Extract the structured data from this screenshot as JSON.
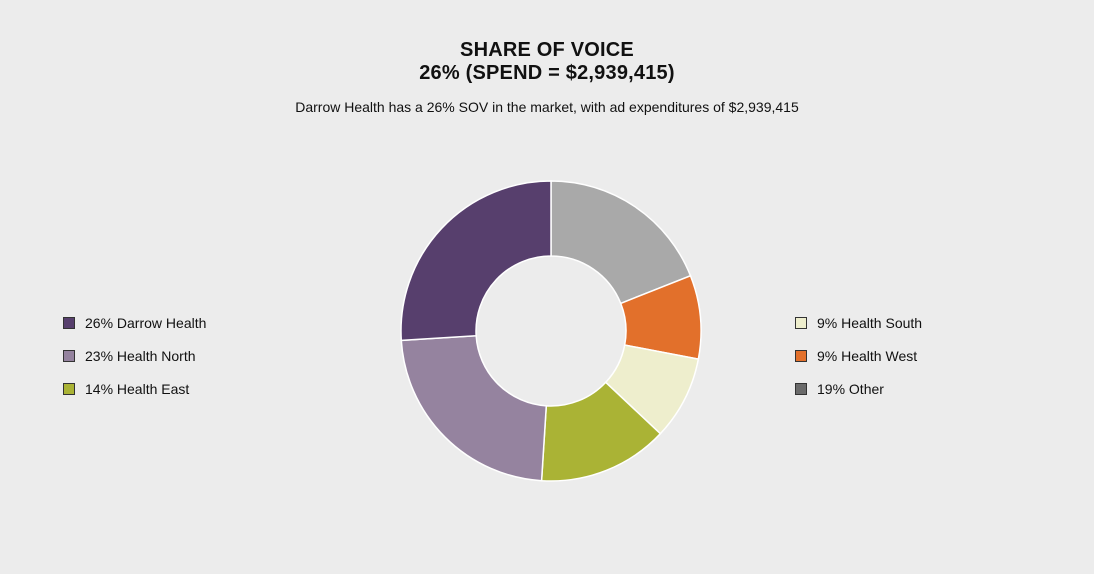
{
  "chart_data": {
    "type": "pie",
    "title": "SHARE OF VOICE",
    "title_line2": "26% (SPEND = $2,939,415)",
    "subtitle": "Darrow Health has a 26% SOV in the market, with ad expenditures of $2,939,415",
    "donut": true,
    "legend_placement": "left-and-right",
    "slices": [
      {
        "label": "Darrow Health",
        "value": 26,
        "legend_text": "26% Darrow Health",
        "color": "#573f6d"
      },
      {
        "label": "Health North",
        "value": 23,
        "legend_text": "23% Health North",
        "color": "#95839f"
      },
      {
        "label": "Health East",
        "value": 14,
        "legend_text": "14% Health East",
        "color": "#aab335"
      },
      {
        "label": "Health South",
        "value": 9,
        "legend_text": "9% Health South",
        "color": "#eeeecd"
      },
      {
        "label": "Health West",
        "value": 9,
        "legend_text": "9% Health West",
        "color": "#e2702b"
      },
      {
        "label": "Other",
        "value": 19,
        "legend_text": "19% Other",
        "color": "#a9a9a9"
      }
    ],
    "legend_left": [
      "Darrow Health",
      "Health North",
      "Health East"
    ],
    "legend_right": [
      "Health South",
      "Health West",
      "Other"
    ],
    "slice_order_clockwise_from_top": [
      "Other",
      "Health West",
      "Health South",
      "Health East",
      "Health North",
      "Darrow Health"
    ],
    "legend_swatch_colors": {
      "Darrow Health": "#573f6d",
      "Health North": "#95839f",
      "Health East": "#aab335",
      "Health South": "#eeeecd",
      "Health West": "#e2702b",
      "Other": "#6a6a6a"
    }
  }
}
